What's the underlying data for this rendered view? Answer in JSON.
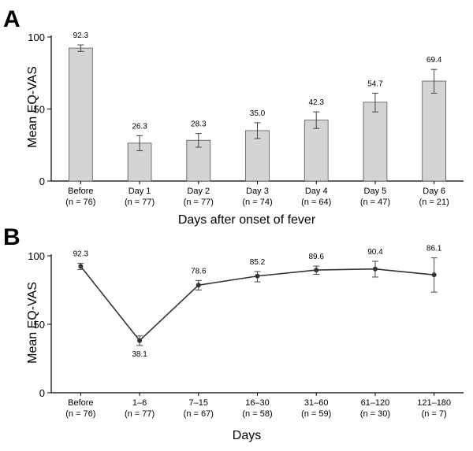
{
  "chart_data": [
    {
      "panel": "A",
      "type": "bar",
      "ylabel": "Mean EQ-VAS",
      "xlabel": "Days after onset of fever",
      "ylim": [
        0,
        100
      ],
      "yticks": [
        0,
        50,
        100
      ],
      "categories": [
        "Before",
        "Day 1",
        "Day 2",
        "Day 3",
        "Day 4",
        "Day 5",
        "Day 6"
      ],
      "n_labels": [
        "(n = 76)",
        "(n = 77)",
        "(n = 77)",
        "(n = 74)",
        "(n = 64)",
        "(n = 47)",
        "(n = 21)"
      ],
      "values": [
        92.3,
        26.3,
        28.3,
        35.0,
        42.3,
        54.7,
        69.4
      ],
      "value_labels": [
        "92.3",
        "26.3",
        "28.3",
        "35.0",
        "42.3",
        "54.7",
        "69.4"
      ],
      "error_low": [
        90.0,
        21.0,
        23.5,
        29.5,
        36.5,
        48.0,
        61.0
      ],
      "error_high": [
        94.5,
        31.5,
        33.0,
        40.5,
        48.0,
        61.0,
        77.5
      ],
      "bar_color": "#d4d4d4"
    },
    {
      "panel": "B",
      "type": "line",
      "ylabel": "Mean EQ-VAS",
      "xlabel": "Days",
      "ylim": [
        0,
        100
      ],
      "yticks": [
        0,
        50,
        100
      ],
      "categories": [
        "Before",
        "1–6",
        "7–15",
        "16–30",
        "31–60",
        "61–120",
        "121–180"
      ],
      "n_labels": [
        "(n = 76)",
        "(n = 77)",
        "(n = 67)",
        "(n = 58)",
        "(n = 59)",
        "(n = 30)",
        "(n = 7)"
      ],
      "values": [
        92.3,
        38.1,
        78.6,
        85.2,
        89.6,
        90.4,
        86.1
      ],
      "value_labels": [
        "92.3",
        "38.1",
        "78.6",
        "85.2",
        "89.6",
        "90.4",
        "86.1"
      ],
      "error_low": [
        90.0,
        34.5,
        75.0,
        81.0,
        86.5,
        84.5,
        73.5
      ],
      "error_high": [
        94.5,
        41.5,
        82.0,
        88.5,
        92.5,
        96.0,
        98.5
      ],
      "line_color": "#333333"
    }
  ]
}
